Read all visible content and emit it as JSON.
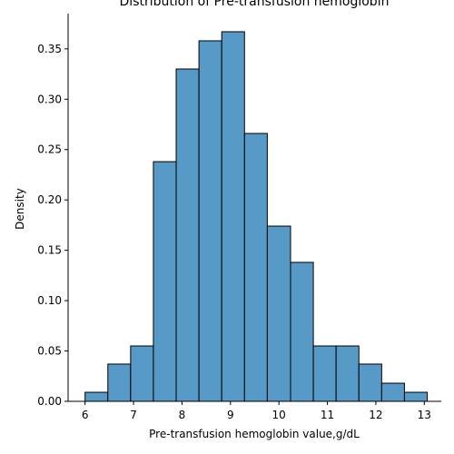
{
  "chart_data": {
    "type": "bar",
    "title": "Distribution of Pre-transfusion hemoglobin",
    "xlabel": "Pre-transfusion hemoglobin value,g/dL",
    "ylabel": "Density",
    "xlim": [
      5.65,
      13.35
    ],
    "ylim": [
      0,
      0.385
    ],
    "x_ticks": [
      6,
      7,
      8,
      9,
      10,
      11,
      12,
      13
    ],
    "y_ticks": [
      0.0,
      0.05,
      0.1,
      0.15,
      0.2,
      0.25,
      0.3,
      0.35
    ],
    "y_tick_labels": [
      "0.00",
      "0.05",
      "0.10",
      "0.15",
      "0.20",
      "0.25",
      "0.30",
      "0.35"
    ],
    "bins": [
      {
        "start": 6.0,
        "end": 6.47,
        "density": 0.009
      },
      {
        "start": 6.47,
        "end": 6.94,
        "density": 0.037
      },
      {
        "start": 6.94,
        "end": 7.41,
        "density": 0.055
      },
      {
        "start": 7.41,
        "end": 7.88,
        "density": 0.238
      },
      {
        "start": 7.88,
        "end": 8.35,
        "density": 0.33
      },
      {
        "start": 8.35,
        "end": 8.82,
        "density": 0.358
      },
      {
        "start": 8.82,
        "end": 9.29,
        "density": 0.367
      },
      {
        "start": 9.29,
        "end": 9.76,
        "density": 0.266
      },
      {
        "start": 9.76,
        "end": 10.24,
        "density": 0.174
      },
      {
        "start": 10.24,
        "end": 10.71,
        "density": 0.138
      },
      {
        "start": 10.71,
        "end": 11.18,
        "density": 0.055
      },
      {
        "start": 11.18,
        "end": 11.65,
        "density": 0.055
      },
      {
        "start": 11.65,
        "end": 12.12,
        "density": 0.037
      },
      {
        "start": 12.12,
        "end": 12.59,
        "density": 0.018
      },
      {
        "start": 12.59,
        "end": 13.06,
        "density": 0.009
      }
    ],
    "grid": false,
    "colors": {
      "bar_fill": "#5799c7",
      "bar_edge": "#000000",
      "axis": "#000000"
    }
  }
}
